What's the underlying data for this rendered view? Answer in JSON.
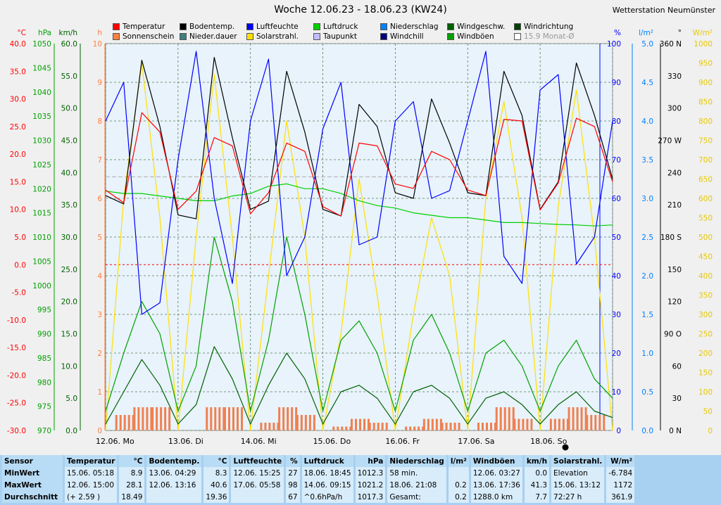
{
  "header": {
    "title": "Woche 12.06.23 - 18.06.23 (KW24)",
    "station": "Wetterstation Neumünster"
  },
  "legend": [
    {
      "label": "Temperatur",
      "color": "#ff0000"
    },
    {
      "label": "Bodentemp.",
      "color": "#000000"
    },
    {
      "label": "Luftfeuchte",
      "color": "#0000ff"
    },
    {
      "label": "Luftdruck",
      "color": "#00d000"
    },
    {
      "label": "Niederschlag",
      "color": "#0080ff"
    },
    {
      "label": "Windgeschw.",
      "color": "#006000"
    },
    {
      "label": "Windrichtung",
      "color": "#004000"
    },
    {
      "label": "Sonnenschein",
      "color": "#ff8040"
    },
    {
      "label": "Nieder.dauer",
      "color": "#408080"
    },
    {
      "label": "Solarstrahl.",
      "color": "#ffe000"
    },
    {
      "label": "Taupunkt",
      "color": "#c0c0ff"
    },
    {
      "label": "Windchill",
      "color": "#000080"
    },
    {
      "label": "Windböen",
      "color": "#00a000"
    },
    {
      "label": "15.9 Monat-Ø",
      "color": "#ffffff"
    }
  ],
  "chart_data": {
    "type": "line",
    "x_labels": [
      "12.06.  Mo",
      "13.06.  Di",
      "14.06.  Mi",
      "15.06.  Do",
      "16.06.  Fr",
      "17.06.  Sa",
      "18.06.  So"
    ],
    "axes": [
      {
        "unit": "°C",
        "color": "#ff0000",
        "ticks": [
          "40.0",
          "35.0",
          "30.0",
          "25.0",
          "20.0",
          "15.0",
          "10.0",
          "5.0",
          "0.0",
          "-5.0",
          "-10.0",
          "-15.0",
          "-20.0",
          "-25.0",
          "-30.0"
        ]
      },
      {
        "unit": "hPa",
        "color": "#00a000",
        "ticks": [
          "1050",
          "1045",
          "1040",
          "1035",
          "1030",
          "1025",
          "1020",
          "1015",
          "1010",
          "1005",
          "1000",
          "995",
          "990",
          "985",
          "980",
          "975",
          "970"
        ]
      },
      {
        "unit": "km/h",
        "color": "#006000",
        "ticks": [
          "60.0",
          "55.0",
          "50.0",
          "45.0",
          "40.0",
          "35.0",
          "30.0",
          "25.0",
          "20.0",
          "15.0",
          "10.0",
          "5.0",
          "0.0"
        ]
      },
      {
        "unit": "h",
        "color": "#ff8040",
        "ticks": [
          "10",
          "9",
          "8",
          "7",
          "6",
          "5",
          "4",
          "3",
          "2",
          "1",
          "0"
        ]
      },
      {
        "unit": "%",
        "color": "#0000ff",
        "ticks": [
          "100",
          "90",
          "80",
          "70",
          "60",
          "50",
          "40",
          "30",
          "20",
          "10",
          "0"
        ]
      },
      {
        "unit": "l/m²",
        "color": "#0080ff",
        "ticks": [
          "5.0",
          "4.5",
          "4.0",
          "3.5",
          "3.0",
          "2.5",
          "2.0",
          "1.5",
          "1.0",
          "0.5",
          "0.0"
        ]
      },
      {
        "unit": "°",
        "color": "#000000",
        "ticks": [
          "360 N",
          "330",
          "300",
          "270 W",
          "240",
          "210",
          "180 S",
          "150",
          "120",
          "90  O",
          "60",
          "30",
          "0  N"
        ]
      },
      {
        "unit": "W/m²",
        "color": "#e8c800",
        "ticks": [
          "1000",
          "950",
          "900",
          "850",
          "800",
          "750",
          "700",
          "650",
          "600",
          "550",
          "500",
          "450",
          "400",
          "350",
          "300",
          "250",
          "200",
          "150",
          "100",
          "50",
          "0"
        ]
      }
    ],
    "series": [
      {
        "name": "Temperatur",
        "unit": "°C",
        "values": [
          13.5,
          11.2,
          27.5,
          24.0,
          10.0,
          13.3,
          23.0,
          21.5,
          9.2,
          13.0,
          22.0,
          20.5,
          10.5,
          8.8,
          22.0,
          21.5,
          14.6,
          13.8,
          20.5,
          19.0,
          13.5,
          12.5,
          26.3,
          26.0,
          9.9,
          14.8,
          26.5,
          25.0,
          15.0
        ]
      },
      {
        "name": "Bodentemp.",
        "unit": "°C",
        "values": [
          12.5,
          11.0,
          37.0,
          25.0,
          9.0,
          8.3,
          37.5,
          23.0,
          10.0,
          11.5,
          35.0,
          24.0,
          10.0,
          8.8,
          29.0,
          25.0,
          13.0,
          12.0,
          30.0,
          22.0,
          13.0,
          12.5,
          35.0,
          27.0,
          10.0,
          15.0,
          36.5,
          27.0,
          15.5
        ]
      },
      {
        "name": "Luftfeuchte",
        "unit": "%",
        "values": [
          80,
          90,
          30,
          33,
          70,
          98,
          60,
          38,
          80,
          96,
          40,
          50,
          78,
          90,
          48,
          50,
          80,
          85,
          60,
          62,
          80,
          98,
          45,
          38,
          88,
          92,
          43,
          50,
          80
        ]
      },
      {
        "name": "Luftdruck",
        "unit": "hPa",
        "values": [
          1019.5,
          1019.0,
          1019.0,
          1018.5,
          1018.0,
          1017.5,
          1017.5,
          1018.5,
          1019.0,
          1020.5,
          1021.0,
          1020.0,
          1020.0,
          1019.0,
          1017.5,
          1016.5,
          1016.0,
          1015.0,
          1014.5,
          1014.0,
          1014.0,
          1013.5,
          1013.0,
          1013.0,
          1012.8,
          1012.6,
          1012.5,
          1012.3,
          1012.5
        ]
      },
      {
        "name": "Solarstrahl.",
        "unit": "W/m²",
        "values": [
          0,
          600,
          950,
          550,
          0,
          500,
          920,
          500,
          0,
          400,
          800,
          500,
          0,
          250,
          650,
          350,
          0,
          300,
          550,
          400,
          0,
          600,
          850,
          550,
          0,
          580,
          880,
          500,
          0
        ]
      },
      {
        "name": "Windböen",
        "unit": "km/h",
        "values": [
          3,
          12,
          20,
          15,
          3,
          10,
          30,
          20,
          3,
          14,
          30,
          18,
          3,
          14,
          17,
          12,
          3,
          14,
          18,
          12,
          3,
          12,
          14,
          10,
          3,
          10,
          14,
          8,
          5
        ]
      },
      {
        "name": "Windgeschw.",
        "unit": "km/h",
        "values": [
          1,
          6,
          11,
          7,
          1,
          4,
          13,
          8,
          1,
          7,
          12,
          8,
          1,
          6,
          7,
          5,
          1,
          6,
          7,
          5,
          1,
          5,
          6,
          4,
          1,
          4,
          6,
          3,
          2
        ]
      }
    ],
    "sunshine_hours": [
      0,
      0.4,
      0.6,
      0.6,
      0,
      0,
      0.6,
      0.6,
      0,
      0.2,
      0.6,
      0.4,
      0,
      0.1,
      0.3,
      0.2,
      0,
      0.1,
      0.3,
      0.2,
      0,
      0.2,
      0.6,
      0.3,
      0,
      0.3,
      0.6,
      0.4,
      0
    ],
    "reference_lines": {
      "monthly_mean_c": 15.9,
      "zero_c": 0
    }
  },
  "stats": {
    "headers": [
      {
        "name": "Sensor",
        "unit": ""
      },
      {
        "name": "Temperatur",
        "unit": "°C"
      },
      {
        "name": "Bodentemp.",
        "unit": "°C"
      },
      {
        "name": "Luftfeuchte",
        "unit": "%"
      },
      {
        "name": "Luftdruck",
        "unit": "hPa"
      },
      {
        "name": "Niederschlag",
        "unit": "l/m²"
      },
      {
        "name": "Windböen",
        "unit": "km/h"
      },
      {
        "name": "Solarstrahl.",
        "unit": "W/m²"
      }
    ],
    "rows": [
      {
        "label": "MinWert",
        "cells": [
          [
            "15.06.  05:18",
            "8.9"
          ],
          [
            "13.06.  04:29",
            "8.3"
          ],
          [
            "12.06.  15:25",
            "27"
          ],
          [
            "18.06.  18:45",
            "1012.3"
          ],
          [
            "58 min.",
            ""
          ],
          [
            "12.06.  03:27",
            "0.0"
          ],
          [
            "Elevation",
            "-6.784"
          ]
        ]
      },
      {
        "label": "MaxWert",
        "cells": [
          [
            "12.06.  15:00",
            "28.1"
          ],
          [
            "12.06.  13:16",
            "40.6"
          ],
          [
            "17.06.  05:58",
            "98"
          ],
          [
            "14.06.  09:15",
            "1021.2"
          ],
          [
            "18.06.  21:08",
            "0.2"
          ],
          [
            "13.06.  17:36",
            "41.3"
          ],
          [
            "15.06.  13:12",
            "1172"
          ]
        ]
      },
      {
        "label": "Durchschnitt",
        "cells": [
          [
            "(+ 2.59 )",
            "18.49"
          ],
          [
            "",
            "19.36"
          ],
          [
            "",
            "67"
          ],
          [
            "^0.6hPa/h",
            "1017.3"
          ],
          [
            "Gesamt:",
            "0.2"
          ],
          [
            "1288.0 km",
            "7.7"
          ],
          [
            "72:27 h",
            "361.9"
          ]
        ]
      }
    ]
  }
}
